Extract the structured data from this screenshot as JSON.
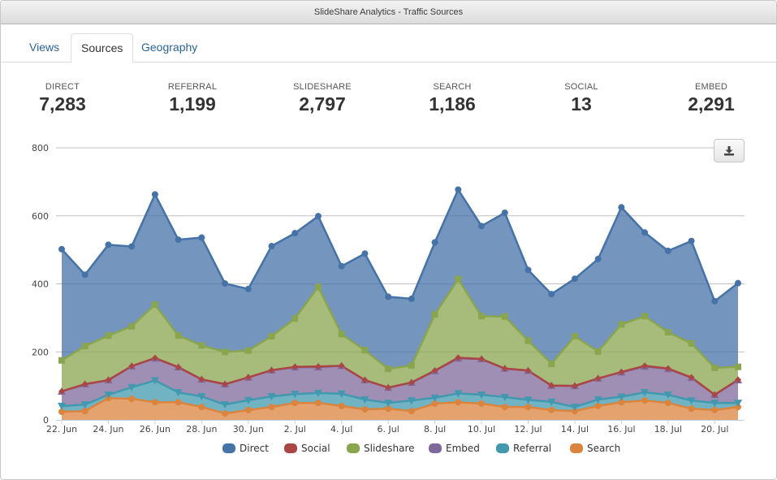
{
  "window": {
    "title": "SlideShare Analytics - Traffic Sources"
  },
  "tabs": [
    {
      "label": "Views",
      "active": false
    },
    {
      "label": "Sources",
      "active": true
    },
    {
      "label": "Geography",
      "active": false
    }
  ],
  "stats": [
    {
      "label": "DIRECT",
      "value": "7,283"
    },
    {
      "label": "REFERRAL",
      "value": "1,199"
    },
    {
      "label": "SLIDESHARE",
      "value": "2,797"
    },
    {
      "label": "SEARCH",
      "value": "1,186"
    },
    {
      "label": "SOCIAL",
      "value": "13"
    },
    {
      "label": "EMBED",
      "value": "2,291"
    }
  ],
  "download_button": {
    "icon": "download-icon"
  },
  "chart_data": {
    "type": "area",
    "stacked": true,
    "title": "",
    "xlabel": "",
    "ylabel": "",
    "ylim": [
      0,
      800
    ],
    "yticks": [
      0,
      200,
      400,
      600,
      800
    ],
    "grid": true,
    "legend_position": "bottom",
    "x": [
      "22. Jun",
      "23. Jun",
      "24. Jun",
      "25. Jun",
      "26. Jun",
      "27. Jun",
      "28. Jun",
      "29. Jun",
      "30. Jun",
      "1. Jul",
      "2. Jul",
      "3. Jul",
      "4. Jul",
      "5. Jul",
      "6. Jul",
      "7. Jul",
      "8. Jul",
      "9. Jul",
      "10. Jul",
      "11. Jul",
      "12. Jul",
      "13. Jul",
      "14. Jul",
      "15. Jul",
      "16. Jul",
      "17. Jul",
      "18. Jul",
      "19. Jul",
      "20. Jul",
      "21. Jul"
    ],
    "xtick_labels": [
      "22. Jun",
      "24. Jun",
      "26. Jun",
      "28. Jun",
      "30. Jun",
      "2. Jul",
      "4. Jul",
      "6. Jul",
      "8. Jul",
      "10. Jul",
      "12. Jul",
      "14. Jul",
      "16. Jul",
      "18. Jul",
      "20. Jul"
    ],
    "series": [
      {
        "name": "Search",
        "color": "#db843d",
        "marker": "circle",
        "values": [
          24,
          26,
          64,
          62,
          52,
          52,
          38,
          19,
          29,
          38,
          50,
          50,
          41,
          31,
          33,
          26,
          48,
          52,
          48,
          38,
          38,
          29,
          26,
          41,
          52,
          57,
          50,
          33,
          29,
          38
        ]
      },
      {
        "name": "Referral",
        "color": "#4198af",
        "marker": "triangle-down",
        "values": [
          17,
          19,
          10,
          34,
          64,
          29,
          31,
          26,
          29,
          31,
          26,
          29,
          36,
          29,
          17,
          31,
          17,
          26,
          26,
          29,
          21,
          24,
          12,
          19,
          16,
          24,
          24,
          24,
          21,
          12
        ]
      },
      {
        "name": "Embed",
        "color": "#80699b",
        "marker": "triangle",
        "values": [
          43,
          60,
          43,
          62,
          65,
          74,
          50,
          60,
          67,
          77,
          79,
          76,
          82,
          57,
          45,
          53,
          79,
          103,
          105,
          84,
          86,
          48,
          62,
          62,
          72,
          76,
          76,
          67,
          24,
          67
        ]
      },
      {
        "name": "Social",
        "color": "#aa4643",
        "marker": "diamond",
        "values": [
          0,
          0,
          0,
          0,
          1,
          0,
          0,
          0,
          0,
          0,
          1,
          2,
          0,
          0,
          0,
          0,
          1,
          2,
          0,
          0,
          0,
          0,
          0,
          0,
          1,
          2,
          1,
          1,
          0,
          1
        ]
      },
      {
        "name": "Slideshare",
        "color": "#89a54e",
        "marker": "square",
        "values": [
          91,
          112,
          131,
          117,
          157,
          93,
          100,
          95,
          79,
          100,
          142,
          234,
          93,
          88,
          55,
          50,
          165,
          231,
          126,
          153,
          88,
          64,
          146,
          79,
          140,
          146,
          107,
          100,
          79,
          38
        ]
      },
      {
        "name": "Direct",
        "color": "#4572a7",
        "marker": "circle",
        "values": [
          327,
          210,
          267,
          235,
          324,
          282,
          317,
          201,
          181,
          265,
          251,
          208,
          200,
          284,
          212,
          196,
          212,
          263,
          265,
          305,
          208,
          205,
          169,
          272,
          344,
          246,
          239,
          301,
          196,
          246
        ]
      }
    ],
    "legend": [
      "Direct",
      "Social",
      "Slideshare",
      "Embed",
      "Referral",
      "Search"
    ]
  }
}
